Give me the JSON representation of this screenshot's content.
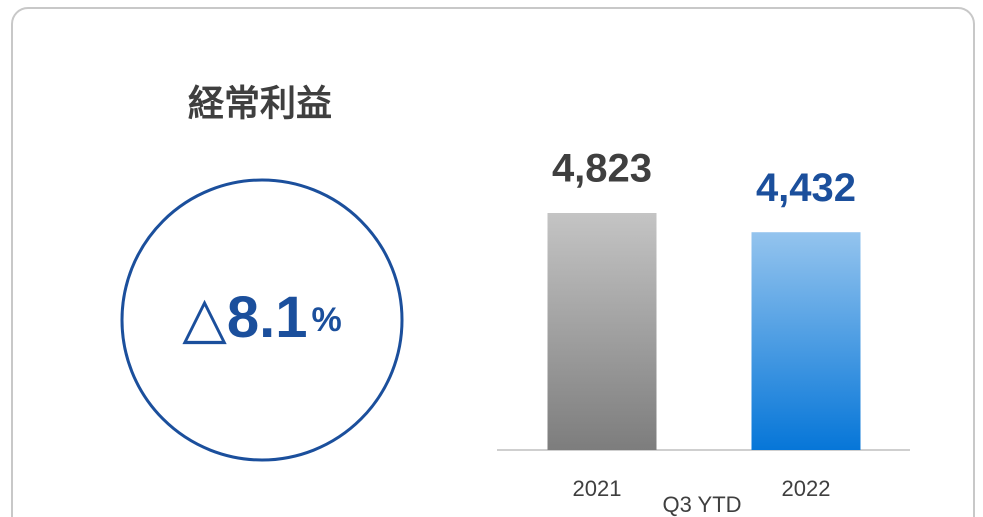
{
  "chart_data": {
    "type": "bar",
    "title": "経常利益",
    "change": "△8.1",
    "change_unit": "%",
    "categories": [
      "2021",
      "2022"
    ],
    "xlabel": "Q3 YTD",
    "values": [
      4823,
      4432
    ],
    "value_labels": [
      "4,823",
      "4,432"
    ],
    "colors": [
      [
        "#c4c4c4",
        "#7d7d7d"
      ],
      [
        "#94c4ee",
        "#0676d8"
      ]
    ],
    "label_colors": [
      "#3f3f3f",
      "#1b4f9c"
    ]
  }
}
